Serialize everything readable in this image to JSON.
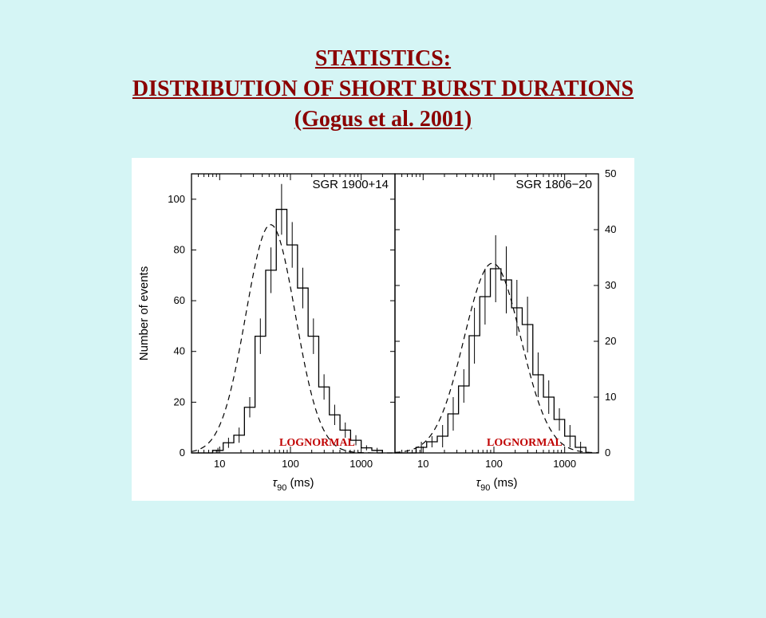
{
  "title_line1": "STATISTICS:",
  "title_line2": "DISTRIBUTION  OF SHORT BURST DURATIONS",
  "title_line3": "(Gogus et al. 2001)",
  "chart": {
    "type": "two-panel-histogram-logx",
    "background_color": "#ffffff",
    "frame_color": "#000000",
    "font_family": "sans-serif",
    "font_size_axis": 13,
    "font_size_panel_label": 15,
    "x_axis": {
      "label": "τ",
      "label_sub": "90",
      "label_unit": "(ms)",
      "scale": "log",
      "xlim": [
        4,
        3000
      ],
      "major_ticks": [
        10,
        100,
        1000
      ],
      "minor_ticks": [
        4,
        5,
        6,
        7,
        8,
        9,
        20,
        30,
        40,
        50,
        60,
        70,
        80,
        90,
        200,
        300,
        400,
        500,
        600,
        700,
        800,
        900,
        2000,
        3000
      ]
    },
    "left_panel": {
      "label": "SGR 1900+14",
      "y_label": "Number of events",
      "ylim": [
        0,
        110
      ],
      "yticks": [
        0,
        20,
        40,
        60,
        80,
        100
      ],
      "bins_logx": [
        0.6,
        0.75,
        0.9,
        1.05,
        1.2,
        1.35,
        1.5,
        1.65,
        1.8,
        1.95,
        2.1,
        2.25,
        2.4,
        2.55,
        2.7,
        2.85,
        3.0,
        3.15,
        3.3
      ],
      "counts": [
        0,
        0,
        1,
        4,
        7,
        18,
        46,
        72,
        96,
        82,
        65,
        46,
        26,
        15,
        9,
        5,
        2,
        1
      ],
      "err": [
        0,
        0,
        1,
        2,
        3,
        4,
        7,
        9,
        10,
        9,
        8,
        7,
        5,
        4,
        3,
        2,
        1,
        1
      ],
      "fit": {
        "type": "lognormal",
        "mu_log10": 1.72,
        "sigma_log10": 0.35,
        "amp": 90
      }
    },
    "right_panel": {
      "label": "SGR 1806−20",
      "ylim": [
        0,
        50
      ],
      "yticks": [
        0,
        10,
        20,
        30,
        40,
        50
      ],
      "bins_logx": [
        0.6,
        0.75,
        0.9,
        1.05,
        1.2,
        1.35,
        1.5,
        1.65,
        1.8,
        1.95,
        2.1,
        2.25,
        2.4,
        2.55,
        2.7,
        2.85,
        3.0,
        3.15,
        3.3
      ],
      "counts": [
        0,
        0,
        1,
        2,
        3,
        7,
        12,
        21,
        28,
        33,
        31,
        26,
        23,
        14,
        10,
        6,
        3,
        1
      ],
      "err": [
        0,
        0,
        1,
        1,
        2,
        3,
        3,
        5,
        5,
        6,
        6,
        5,
        5,
        4,
        3,
        2,
        2,
        1
      ],
      "fit": {
        "type": "lognormal",
        "mu_log10": 1.98,
        "sigma_log10": 0.4,
        "amp": 34
      }
    },
    "lognormal_annotation": "LOGNORMAL",
    "annotation_color": "#c00000"
  }
}
